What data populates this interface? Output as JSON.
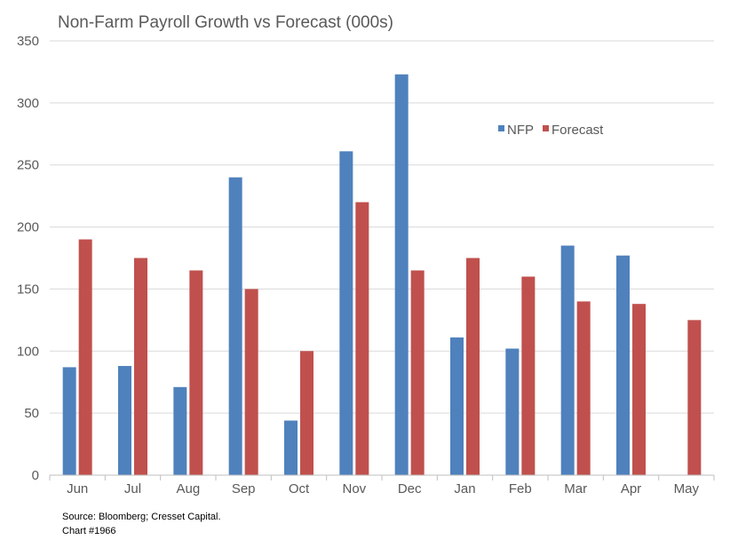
{
  "chart_data": {
    "type": "bar",
    "title": "Non-Farm Payroll Growth vs Forecast (000s)",
    "categories": [
      "Jun",
      "Jul",
      "Aug",
      "Sep",
      "Oct",
      "Nov",
      "Dec",
      "Jan",
      "Feb",
      "Mar",
      "Apr",
      "May"
    ],
    "series": [
      {
        "name": "NFP",
        "color": "#4f81bd",
        "values": [
          87,
          88,
          71,
          240,
          44,
          261,
          323,
          111,
          102,
          185,
          177,
          null
        ]
      },
      {
        "name": "Forecast",
        "color": "#c0504d",
        "values": [
          190,
          175,
          165,
          150,
          100,
          220,
          165,
          175,
          160,
          140,
          138,
          125
        ]
      }
    ],
    "ylim": [
      0,
      350
    ],
    "yticks": [
      0,
      50,
      100,
      150,
      200,
      250,
      300,
      350
    ],
    "xlabel": "",
    "ylabel": "",
    "grid": true,
    "legend_position": "top-right"
  },
  "footer": {
    "source": "Source: Bloomberg; Cresset Capital.",
    "chart_id": "Chart #1966"
  }
}
